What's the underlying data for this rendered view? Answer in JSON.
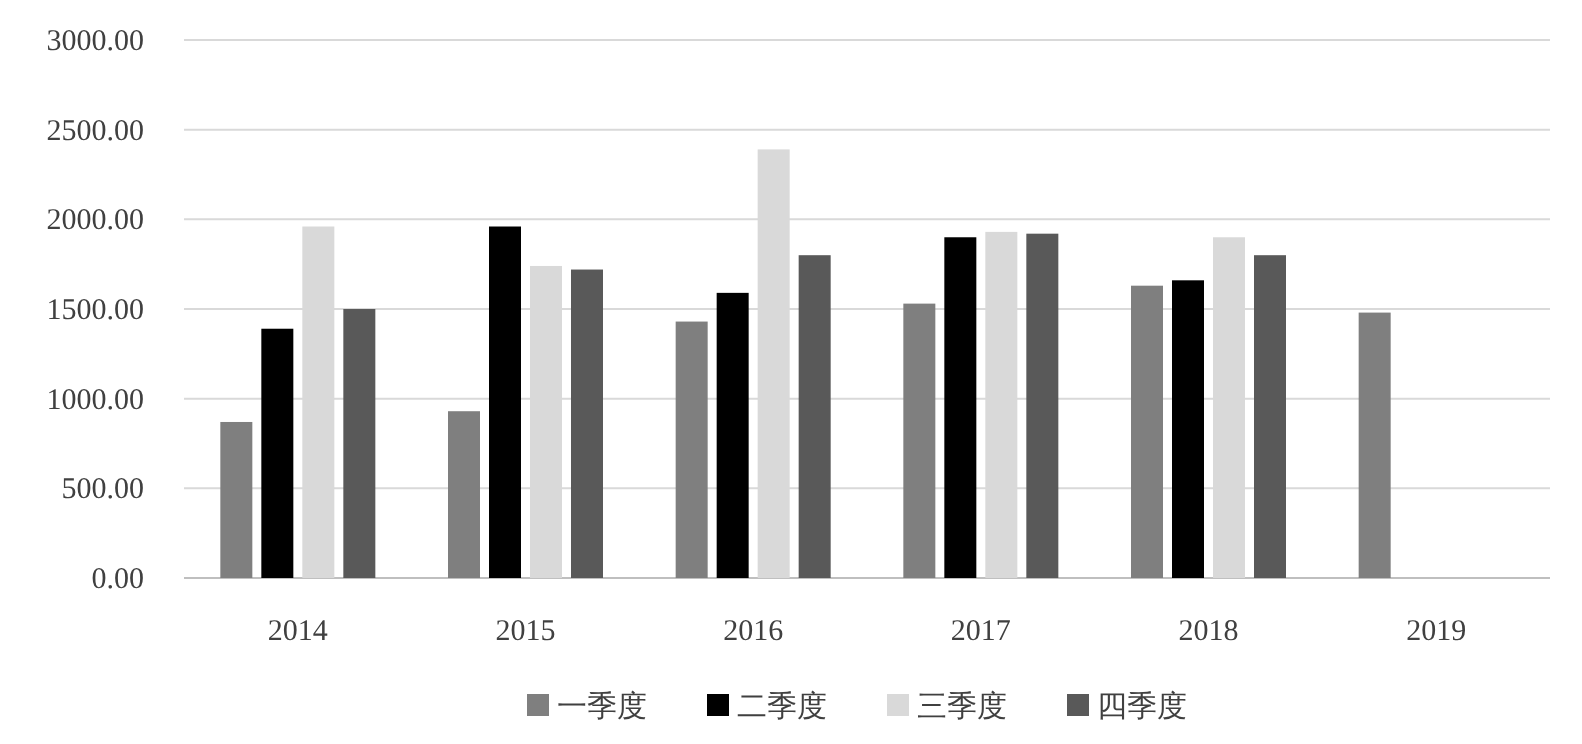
{
  "chart_data": {
    "type": "bar",
    "categories": [
      "2014",
      "2015",
      "2016",
      "2017",
      "2018",
      "2019"
    ],
    "series": [
      {
        "name": "一季度",
        "color": "#7f7f7f",
        "values": [
          870,
          930,
          1430,
          1530,
          1630,
          1480
        ]
      },
      {
        "name": "二季度",
        "color": "#000000",
        "values": [
          1390,
          1960,
          1590,
          1900,
          1660,
          null
        ]
      },
      {
        "name": "三季度",
        "color": "#d9d9d9",
        "values": [
          1960,
          1740,
          2390,
          1930,
          1900,
          null
        ]
      },
      {
        "name": "四季度",
        "color": "#595959",
        "values": [
          1500,
          1720,
          1800,
          1920,
          1800,
          null
        ]
      }
    ],
    "ylim": [
      0,
      3000
    ],
    "yticks": [
      {
        "value": 0,
        "label": "0.00"
      },
      {
        "value": 500,
        "label": "500.00"
      },
      {
        "value": 1000,
        "label": "1000.00"
      },
      {
        "value": 1500,
        "label": "1500.00"
      },
      {
        "value": 2000,
        "label": "2000.00"
      },
      {
        "value": 2500,
        "label": "2500.00"
      },
      {
        "value": 3000,
        "label": "3000.00"
      }
    ],
    "grid": "y",
    "legend": "bottom"
  }
}
